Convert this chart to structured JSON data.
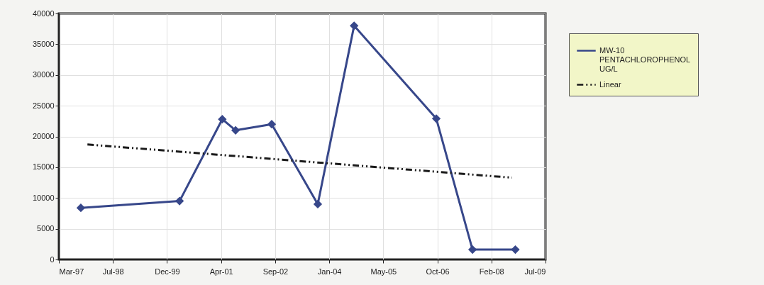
{
  "chart_data": {
    "type": "line",
    "xlim": [
      "1997-03-12",
      "2009-07-07"
    ],
    "xticks": [
      {
        "value": "1997-03-12",
        "label": "Mar-97"
      },
      {
        "value": "1998-07-25",
        "label": "Jul-98"
      },
      {
        "value": "1999-12-07",
        "label": "Dec-99"
      },
      {
        "value": "2001-04-20",
        "label": "Apr-01"
      },
      {
        "value": "2002-09-02",
        "label": "Sep-02"
      },
      {
        "value": "2004-01-15",
        "label": "Jan-04"
      },
      {
        "value": "2005-05-29",
        "label": "May-05"
      },
      {
        "value": "2006-10-11",
        "label": "Oct-06"
      },
      {
        "value": "2008-02-23",
        "label": "Feb-08"
      },
      {
        "value": "2009-07-07",
        "label": "Jul-09"
      }
    ],
    "ylim": [
      0,
      40000
    ],
    "yticks": [
      0,
      5000,
      10000,
      15000,
      20000,
      25000,
      30000,
      35000,
      40000
    ],
    "grid": true,
    "legend": "top right",
    "series": [
      {
        "name": "MW-10 PENTACHLOROPHENOL UG/L",
        "color": "#37478a",
        "marker": "diamond",
        "line_style": "solid",
        "x": [
          "1997-10",
          "2000-04",
          "2001-05",
          "2001-09",
          "2002-08",
          "2003-10",
          "2004-09",
          "2006-10",
          "2007-09",
          "2008-10"
        ],
        "values": [
          8400,
          9500,
          22800,
          21000,
          22000,
          9000,
          38000,
          22900,
          1600,
          1600
        ]
      },
      {
        "name": "Linear",
        "color": "#1a1a1a",
        "marker": "none",
        "line_style": "dashed",
        "x": [
          "1997-12",
          "2008-09"
        ],
        "values": [
          18700,
          13300
        ]
      }
    ]
  }
}
